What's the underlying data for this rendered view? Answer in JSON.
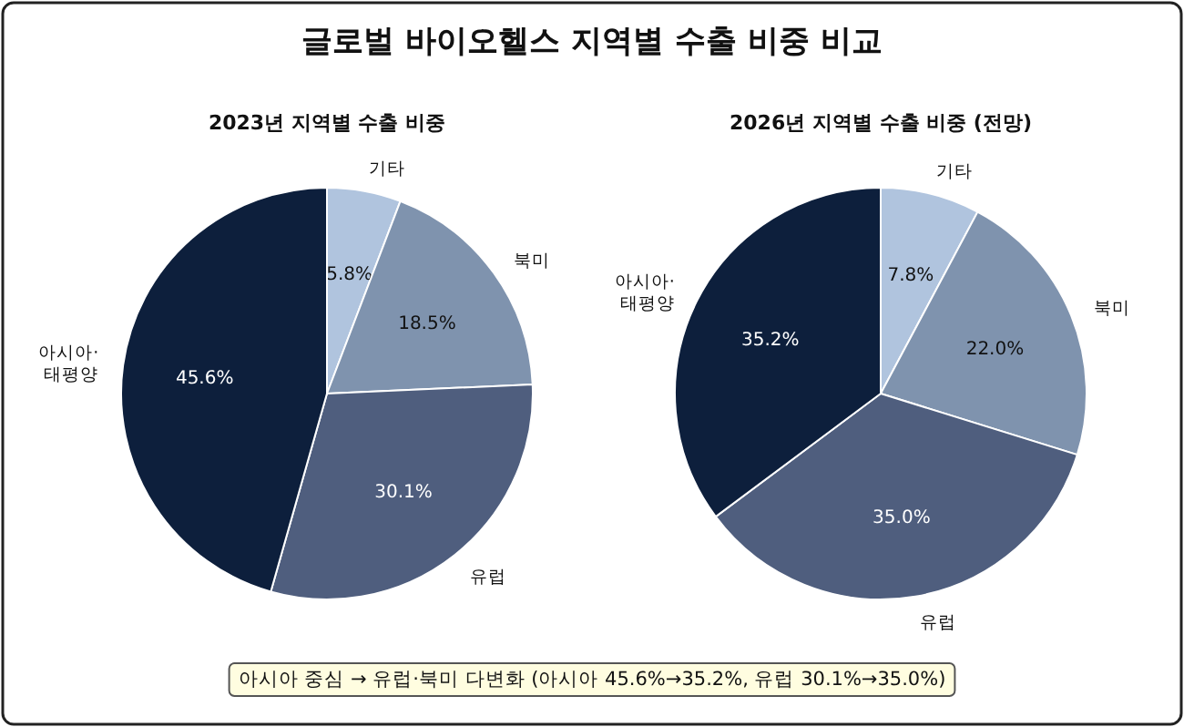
{
  "chart_data": [
    {
      "type": "pie",
      "title": "글로벌 바이오헬스 지역별 수출 비중 비교",
      "subtitle": "2023년 지역별 수출 비중",
      "categories": [
        "기타",
        "북미",
        "유럽",
        "아시아·태평양"
      ],
      "values": [
        5.8,
        18.5,
        30.1,
        45.6
      ],
      "value_labels": [
        "5.8%",
        "18.5%",
        "30.1%",
        "45.6%"
      ],
      "colors": [
        "#b0c4de",
        "#7f93ae",
        "#4f5e7e",
        "#0d1f3c"
      ],
      "annotations": [
        "아시아 중심 → 유럽·북미 다변화 (아시아 45.6%→35.2%, 유럽 30.1%→35.0%)"
      ]
    },
    {
      "type": "pie",
      "subtitle": "2026년 지역별 수출 비중 (전망)",
      "categories": [
        "기타",
        "북미",
        "유럽",
        "아시아·태평양"
      ],
      "values": [
        7.8,
        22.0,
        35.0,
        35.2
      ],
      "value_labels": [
        "7.8%",
        "22.0%",
        "35.0%",
        "35.2%"
      ],
      "colors": [
        "#b0c4de",
        "#7f93ae",
        "#4f5e7e",
        "#0d1f3c"
      ]
    }
  ]
}
